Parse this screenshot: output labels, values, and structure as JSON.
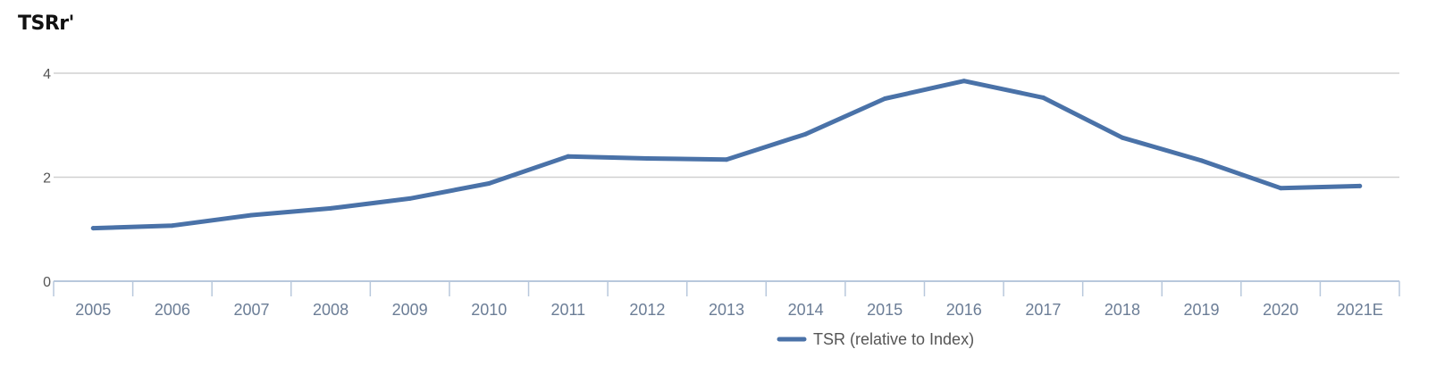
{
  "chart_data": {
    "type": "line",
    "title": "TSRr'",
    "categories": [
      "2005",
      "2006",
      "2007",
      "2008",
      "2009",
      "2010",
      "2011",
      "2012",
      "2013",
      "2014",
      "2015",
      "2016",
      "2017",
      "2018",
      "2019",
      "2020",
      "2021E"
    ],
    "series": [
      {
        "name": "TSR (relative to Index)",
        "values": [
          1.02,
          1.07,
          1.27,
          1.4,
          1.59,
          1.88,
          2.4,
          2.36,
          2.34,
          2.83,
          3.51,
          3.85,
          3.53,
          2.76,
          2.32,
          1.79,
          1.83
        ]
      }
    ],
    "ylim": [
      0,
      4
    ],
    "yticks": [
      "0",
      "2",
      "4"
    ],
    "grid": true,
    "legend_position": "bottom-center",
    "colors": {
      "series": "#4a72a8",
      "grid": "#d0d0d0",
      "axis": "#b8c8dc"
    }
  }
}
